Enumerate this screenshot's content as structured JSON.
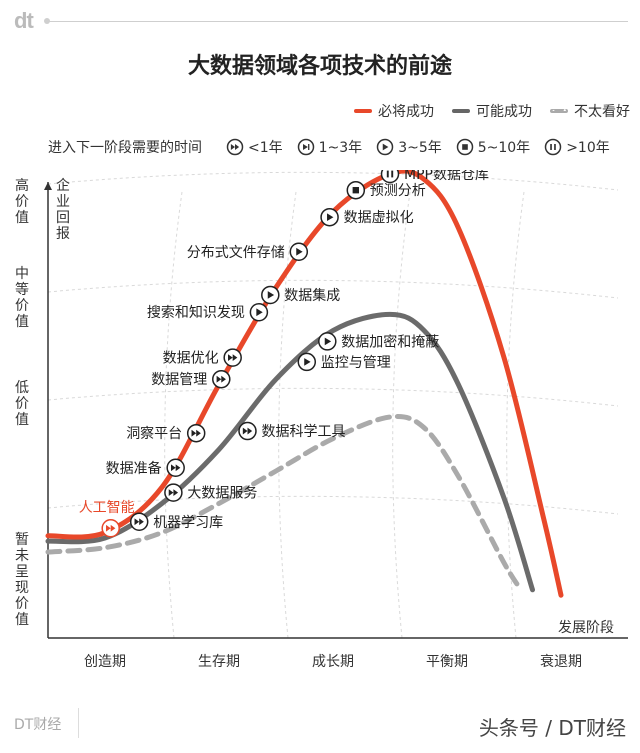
{
  "brand": {
    "logo": "dt",
    "footer_left": "DT财经",
    "footer_right": "头条号 / DT财经"
  },
  "title": "大数据领域各项技术的前途",
  "legend": {
    "must": "必将成功",
    "may": "可能成功",
    "unlikely": "不太看好"
  },
  "stage_legend": {
    "lead": "进入下一阶段需要的时间",
    "items": [
      {
        "icon": "fast-forward-icon",
        "label": "<1年"
      },
      {
        "icon": "skip-forward-icon",
        "label": "1~3年"
      },
      {
        "icon": "play-icon",
        "label": "3~5年"
      },
      {
        "icon": "stop-icon",
        "label": "5~10年"
      },
      {
        "icon": "pause-icon",
        "label": ">10年"
      }
    ]
  },
  "colors": {
    "must": "#e8482a",
    "may": "#6b6b6b",
    "unlikely": "#aaaaaa",
    "highlight": "#e8482a"
  },
  "chart_data": {
    "type": "line",
    "ylabel": "企业回报",
    "y_levels": [
      "暂未呈现价值",
      "低价值",
      "中等价值",
      "高价值"
    ],
    "x_stages": [
      "创造期",
      "生存期",
      "成长期",
      "平衡期",
      "衰退期"
    ],
    "x_axis_end_label": "发展阶段",
    "series": [
      {
        "name": "必将成功",
        "key": "must",
        "style": "solid",
        "points": [
          [
            0,
            0.15
          ],
          [
            0.5,
            0.18
          ],
          [
            1.0,
            0.6
          ],
          [
            1.5,
            1.55
          ],
          [
            2.0,
            2.45
          ],
          [
            2.5,
            3.15
          ],
          [
            3.0,
            3.5
          ],
          [
            3.3,
            3.45
          ],
          [
            3.6,
            3.0
          ],
          [
            4.0,
            1.8
          ],
          [
            4.35,
            0.3
          ],
          [
            4.5,
            -0.4
          ]
        ]
      },
      {
        "name": "可能成功",
        "key": "may",
        "style": "solid",
        "points": [
          [
            0,
            0.1
          ],
          [
            0.5,
            0.13
          ],
          [
            1.0,
            0.45
          ],
          [
            1.5,
            0.95
          ],
          [
            2.0,
            1.6
          ],
          [
            2.5,
            2.05
          ],
          [
            3.0,
            2.2
          ],
          [
            3.3,
            2.05
          ],
          [
            3.6,
            1.55
          ],
          [
            4.0,
            0.5
          ],
          [
            4.25,
            -0.35
          ]
        ]
      },
      {
        "name": "不太看好",
        "key": "unlikely",
        "style": "dashed",
        "points": [
          [
            0,
            0.0
          ],
          [
            0.5,
            0.04
          ],
          [
            1.0,
            0.18
          ],
          [
            1.5,
            0.45
          ],
          [
            2.0,
            0.75
          ],
          [
            2.5,
            1.05
          ],
          [
            3.0,
            1.25
          ],
          [
            3.3,
            1.15
          ],
          [
            3.6,
            0.7
          ],
          [
            4.0,
            -0.1
          ],
          [
            4.15,
            -0.35
          ]
        ]
      }
    ],
    "technologies": [
      {
        "label": "MPP数据仓库",
        "x": 3.0,
        "y": 3.5,
        "icon": "pause-icon",
        "side": "right"
      },
      {
        "label": "预测分析",
        "x": 2.7,
        "y": 3.35,
        "icon": "stop-icon",
        "side": "right"
      },
      {
        "label": "数据虚拟化",
        "x": 2.47,
        "y": 3.1,
        "icon": "play-icon",
        "side": "right"
      },
      {
        "label": "分布式文件存储",
        "x": 2.2,
        "y": 2.78,
        "icon": "play-icon",
        "side": "left"
      },
      {
        "label": "数据集成",
        "x": 1.95,
        "y": 2.38,
        "icon": "play-icon",
        "side": "right"
      },
      {
        "label": "搜索和知识发现",
        "x": 1.85,
        "y": 2.22,
        "icon": "play-icon",
        "side": "left"
      },
      {
        "label": "数据优化",
        "x": 1.62,
        "y": 1.8,
        "icon": "fast-forward-icon",
        "side": "left"
      },
      {
        "label": "数据管理",
        "x": 1.52,
        "y": 1.6,
        "icon": "fast-forward-icon",
        "side": "left"
      },
      {
        "label": "洞察平台",
        "x": 1.3,
        "y": 1.1,
        "icon": "fast-forward-icon",
        "side": "left"
      },
      {
        "label": "数据准备",
        "x": 1.12,
        "y": 0.78,
        "icon": "fast-forward-icon",
        "side": "left"
      },
      {
        "label": "人工智能",
        "x": 0.55,
        "y": 0.22,
        "icon": "fast-forward-icon",
        "side": "up",
        "highlight": true
      },
      {
        "label": "数据加密和掩蔽",
        "x": 2.45,
        "y": 1.95,
        "icon": "play-icon",
        "side": "right"
      },
      {
        "label": "监控与管理",
        "x": 2.27,
        "y": 1.76,
        "icon": "play-icon",
        "side": "right"
      },
      {
        "label": "数据科学工具",
        "x": 1.75,
        "y": 1.12,
        "icon": "fast-forward-icon",
        "side": "right"
      },
      {
        "label": "大数据服务",
        "x": 1.1,
        "y": 0.55,
        "icon": "fast-forward-icon",
        "side": "right"
      },
      {
        "label": "机器学习库",
        "x": 0.8,
        "y": 0.28,
        "icon": "fast-forward-icon",
        "side": "right"
      }
    ],
    "grid": true
  }
}
